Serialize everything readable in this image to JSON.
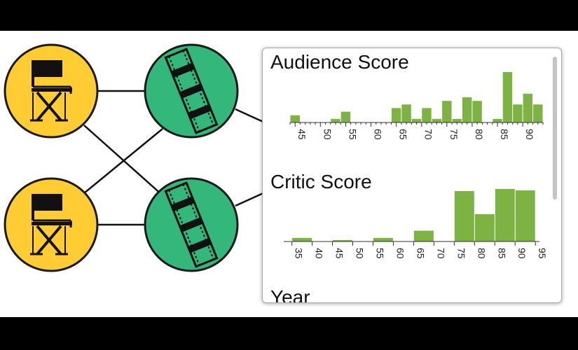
{
  "colors": {
    "frame": "#000000",
    "director_node": "#ffcc33",
    "movie_node": "#33b77a",
    "node_stroke": "#1a1a1a",
    "bar_fill": "#7cb342",
    "axis": "#333333"
  },
  "graph": {
    "nodes": [
      {
        "id": "director-1",
        "kind": "director",
        "icon": "director-chair-icon"
      },
      {
        "id": "director-2",
        "kind": "director",
        "icon": "director-chair-icon"
      },
      {
        "id": "movie-1",
        "kind": "movie",
        "icon": "film-strip-icon"
      },
      {
        "id": "movie-2",
        "kind": "movie",
        "icon": "film-strip-icon"
      }
    ],
    "edges": [
      [
        "director-1",
        "movie-1"
      ],
      [
        "director-1",
        "movie-2"
      ],
      [
        "director-2",
        "movie-1"
      ],
      [
        "director-2",
        "movie-2"
      ],
      [
        "movie-1",
        "panel"
      ],
      [
        "movie-2",
        "panel"
      ]
    ]
  },
  "panel": {
    "sections": [
      {
        "title": "Audience Score"
      },
      {
        "title": "Critic Score"
      },
      {
        "title": "Year"
      }
    ]
  },
  "chart_data": [
    {
      "type": "bar",
      "title": "Audience Score",
      "bin_width": 2,
      "xlim": [
        44,
        94
      ],
      "ylim": [
        0,
        7
      ],
      "xticks": [
        45,
        50,
        55,
        60,
        65,
        70,
        75,
        80,
        85,
        90
      ],
      "bins": [
        {
          "x": 44,
          "value": 1
        },
        {
          "x": 52,
          "value": 0.5
        },
        {
          "x": 54,
          "value": 1.5
        },
        {
          "x": 64,
          "value": 2
        },
        {
          "x": 66,
          "value": 2.5
        },
        {
          "x": 68,
          "value": 0.5
        },
        {
          "x": 70,
          "value": 2
        },
        {
          "x": 72,
          "value": 0.5
        },
        {
          "x": 74,
          "value": 3
        },
        {
          "x": 76,
          "value": 0.5
        },
        {
          "x": 78,
          "value": 3.5
        },
        {
          "x": 80,
          "value": 3
        },
        {
          "x": 84,
          "value": 0.5
        },
        {
          "x": 86,
          "value": 7
        },
        {
          "x": 88,
          "value": 2.5
        },
        {
          "x": 90,
          "value": 4
        },
        {
          "x": 92,
          "value": 2.5
        }
      ]
    },
    {
      "type": "bar",
      "title": "Critic Score",
      "bin_width": 5,
      "xlim": [
        33,
        96
      ],
      "ylim": [
        0,
        7
      ],
      "xticks": [
        35,
        40,
        45,
        50,
        55,
        60,
        65,
        70,
        75,
        80,
        85,
        90,
        95
      ],
      "bins": [
        {
          "x": 35,
          "value": 0.5
        },
        {
          "x": 45,
          "value": 0.2
        },
        {
          "x": 55,
          "value": 0.5
        },
        {
          "x": 65,
          "value": 1.5
        },
        {
          "x": 75,
          "value": 7
        },
        {
          "x": 80,
          "value": 3.8
        },
        {
          "x": 85,
          "value": 7.3
        },
        {
          "x": 90,
          "value": 7.1
        }
      ]
    }
  ]
}
